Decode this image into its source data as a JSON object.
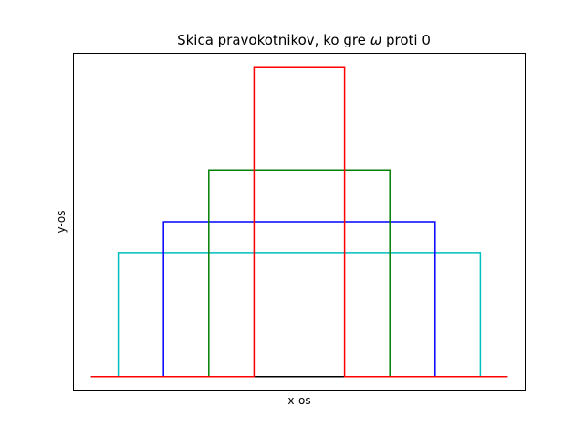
{
  "chart_data": {
    "type": "line",
    "title_prefix": "Skica pravokotnikov, ko gre ",
    "title_symbol": "ω",
    "title_suffix": " proti 0",
    "xlabel": "x-os",
    "ylabel": "y-os",
    "xlim": [
      -2.5,
      2.5
    ],
    "ylim": [
      -0.045,
      1.045
    ],
    "xticks_visible": false,
    "yticks_visible": false,
    "grid": false,
    "baseline_color": "#000000",
    "series": [
      {
        "color": "#ff0000",
        "x": [
          -2.5,
          -0.5,
          -0.5,
          0.5,
          0.5,
          2.5
        ],
        "y": [
          0,
          0,
          1.0,
          1.0,
          0,
          0
        ]
      },
      {
        "color": "#008000",
        "x": [
          -2.5,
          -1.0,
          -1.0,
          1.0,
          1.0,
          2.5
        ],
        "y": [
          0,
          0,
          0.667,
          0.667,
          0,
          0
        ]
      },
      {
        "color": "#0000ff",
        "x": [
          -2.5,
          -1.5,
          -1.5,
          1.5,
          1.5,
          2.5
        ],
        "y": [
          0,
          0,
          0.5,
          0.5,
          0,
          0
        ]
      },
      {
        "color": "#00bfbf",
        "x": [
          -2.5,
          -2.0,
          -2.0,
          2.0,
          2.0,
          2.5
        ],
        "y": [
          0,
          0,
          0.4,
          0.4,
          0,
          0
        ]
      }
    ]
  }
}
